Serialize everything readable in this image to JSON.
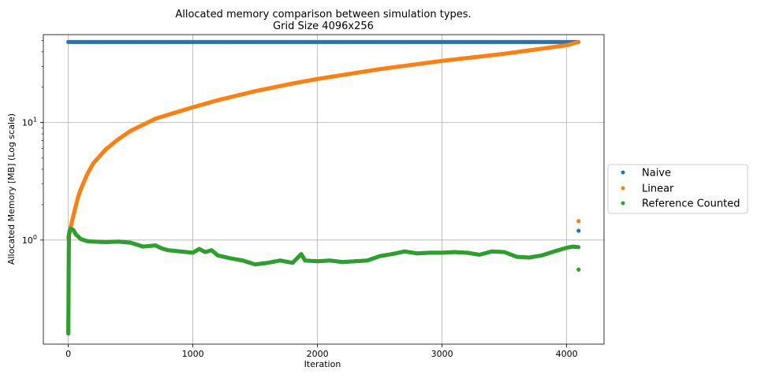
{
  "chart_data": {
    "type": "scatter",
    "title": "Allocated memory comparison between simulation types.",
    "subtitle": "Grid Size 4096x256",
    "xlabel": "Iteration",
    "ylabel": "Allocated Memory [MB] (Log scale)",
    "xlim": [
      -200,
      4300
    ],
    "ylim": [
      0.13,
      56
    ],
    "yscale": "log",
    "grid": true,
    "legend_position": "outside-right",
    "x_ticks": [
      0,
      1000,
      2000,
      3000,
      4000
    ],
    "x_tick_labels": [
      "0",
      "1000",
      "2000",
      "3000",
      "4000"
    ],
    "y_ticks": [
      1,
      10
    ],
    "y_tick_labels": [
      {
        "base": "10",
        "exp": "0"
      },
      {
        "base": "10",
        "exp": "1"
      }
    ],
    "series": [
      {
        "name": "Naive",
        "color": "#1f77b4",
        "points": [
          [
            0,
            48.5
          ],
          [
            500,
            48.5
          ],
          [
            1000,
            48.5
          ],
          [
            1500,
            48.5
          ],
          [
            2000,
            48.5
          ],
          [
            2500,
            48.5
          ],
          [
            3000,
            48.5
          ],
          [
            3500,
            48.5
          ],
          [
            4000,
            48.5
          ],
          [
            4095,
            48.5
          ],
          [
            4096,
            1.2
          ]
        ]
      },
      {
        "name": "Linear",
        "color": "#ff7f0e",
        "points": [
          [
            0,
            1.05
          ],
          [
            10,
            1.15
          ],
          [
            20,
            1.3
          ],
          [
            40,
            1.6
          ],
          [
            60,
            1.95
          ],
          [
            80,
            2.35
          ],
          [
            100,
            2.7
          ],
          [
            150,
            3.6
          ],
          [
            200,
            4.5
          ],
          [
            300,
            5.9
          ],
          [
            400,
            7.2
          ],
          [
            500,
            8.5
          ],
          [
            700,
            10.8
          ],
          [
            1000,
            13.5
          ],
          [
            1200,
            15.5
          ],
          [
            1500,
            18.5
          ],
          [
            1800,
            21.5
          ],
          [
            2000,
            23.5
          ],
          [
            2500,
            28.5
          ],
          [
            3000,
            33.5
          ],
          [
            3500,
            38.5
          ],
          [
            4000,
            45.5
          ],
          [
            4095,
            48.5
          ],
          [
            4096,
            1.45
          ]
        ]
      },
      {
        "name": "Reference Counted",
        "color": "#2ca02c",
        "points": [
          [
            0,
            0.16
          ],
          [
            5,
            1.1
          ],
          [
            10,
            1.2
          ],
          [
            20,
            1.25
          ],
          [
            40,
            1.22
          ],
          [
            60,
            1.12
          ],
          [
            100,
            1.02
          ],
          [
            150,
            0.98
          ],
          [
            200,
            0.97
          ],
          [
            300,
            0.96
          ],
          [
            400,
            0.97
          ],
          [
            500,
            0.95
          ],
          [
            600,
            0.88
          ],
          [
            700,
            0.9
          ],
          [
            750,
            0.85
          ],
          [
            800,
            0.82
          ],
          [
            900,
            0.8
          ],
          [
            1000,
            0.78
          ],
          [
            1050,
            0.84
          ],
          [
            1100,
            0.79
          ],
          [
            1150,
            0.82
          ],
          [
            1200,
            0.74
          ],
          [
            1300,
            0.7
          ],
          [
            1400,
            0.67
          ],
          [
            1500,
            0.62
          ],
          [
            1600,
            0.64
          ],
          [
            1700,
            0.67
          ],
          [
            1800,
            0.64
          ],
          [
            1870,
            0.76
          ],
          [
            1900,
            0.67
          ],
          [
            2000,
            0.66
          ],
          [
            2100,
            0.67
          ],
          [
            2200,
            0.65
          ],
          [
            2400,
            0.67
          ],
          [
            2500,
            0.73
          ],
          [
            2600,
            0.76
          ],
          [
            2700,
            0.8
          ],
          [
            2800,
            0.77
          ],
          [
            2900,
            0.78
          ],
          [
            3000,
            0.78
          ],
          [
            3100,
            0.79
          ],
          [
            3200,
            0.78
          ],
          [
            3300,
            0.75
          ],
          [
            3400,
            0.8
          ],
          [
            3500,
            0.79
          ],
          [
            3600,
            0.72
          ],
          [
            3700,
            0.71
          ],
          [
            3800,
            0.74
          ],
          [
            3900,
            0.8
          ],
          [
            4000,
            0.86
          ],
          [
            4050,
            0.88
          ],
          [
            4095,
            0.87
          ],
          [
            4096,
            0.56
          ]
        ]
      }
    ]
  }
}
